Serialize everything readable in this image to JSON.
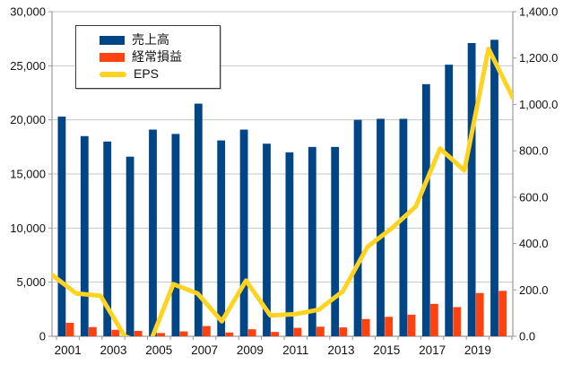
{
  "chart_data": {
    "type": "bar",
    "subtype": "dual-axis bar+line combo",
    "title": "",
    "categories": [
      2001,
      2002,
      2003,
      2004,
      2005,
      2006,
      2007,
      2008,
      2009,
      2010,
      2011,
      2012,
      2013,
      2014,
      2015,
      2016,
      2017,
      2018,
      2019,
      2020
    ],
    "x_axis": {
      "tick_labels": [
        "2001",
        "2003",
        "2005",
        "2007",
        "2009",
        "2011",
        "2013",
        "2015",
        "2017",
        "2019"
      ],
      "label_every_n_years": 2
    },
    "y_axis_left": {
      "min": 0,
      "max": 30000,
      "step": 5000,
      "tick_labels": [
        "0",
        "5,000",
        "10,000",
        "15,000",
        "20,000",
        "25,000",
        "30,000"
      ]
    },
    "y_axis_right": {
      "min": 0,
      "max": 1400,
      "step": 200,
      "tick_labels": [
        "0.0",
        "200.0",
        "400.0",
        "600.0",
        "800.0",
        "1,000.0",
        "1,200.0",
        "1,400.0"
      ]
    },
    "series": [
      {
        "name": "売上高",
        "type": "bar",
        "axis": "left",
        "color": "#004586",
        "values": [
          20300,
          18500,
          18000,
          16600,
          19100,
          18700,
          21500,
          18100,
          19100,
          17800,
          17000,
          17500,
          17500,
          20000,
          20100,
          20100,
          23300,
          25100,
          27100,
          27400
        ]
      },
      {
        "name": "経常損益",
        "type": "bar",
        "axis": "left",
        "color": "#FF420E",
        "values": [
          1250,
          850,
          600,
          500,
          300,
          450,
          950,
          350,
          650,
          400,
          780,
          890,
          820,
          1600,
          1800,
          2000,
          3000,
          2700,
          4000,
          4200
        ]
      },
      {
        "name": "EPS",
        "type": "line",
        "axis": "right",
        "color": "#FFD320",
        "values": [
          265,
          185,
          175,
          0,
          -40,
          225,
          185,
          65,
          240,
          90,
          95,
          115,
          195,
          385,
          465,
          560,
          810,
          715,
          1240,
          1030
        ]
      }
    ],
    "legend_position": "top-left",
    "grid": "horizontal",
    "colors": {
      "background": "#ffffff",
      "gridline": "#c6c6c6",
      "axis_line": "#9a9a9a",
      "text": "#111111"
    }
  }
}
